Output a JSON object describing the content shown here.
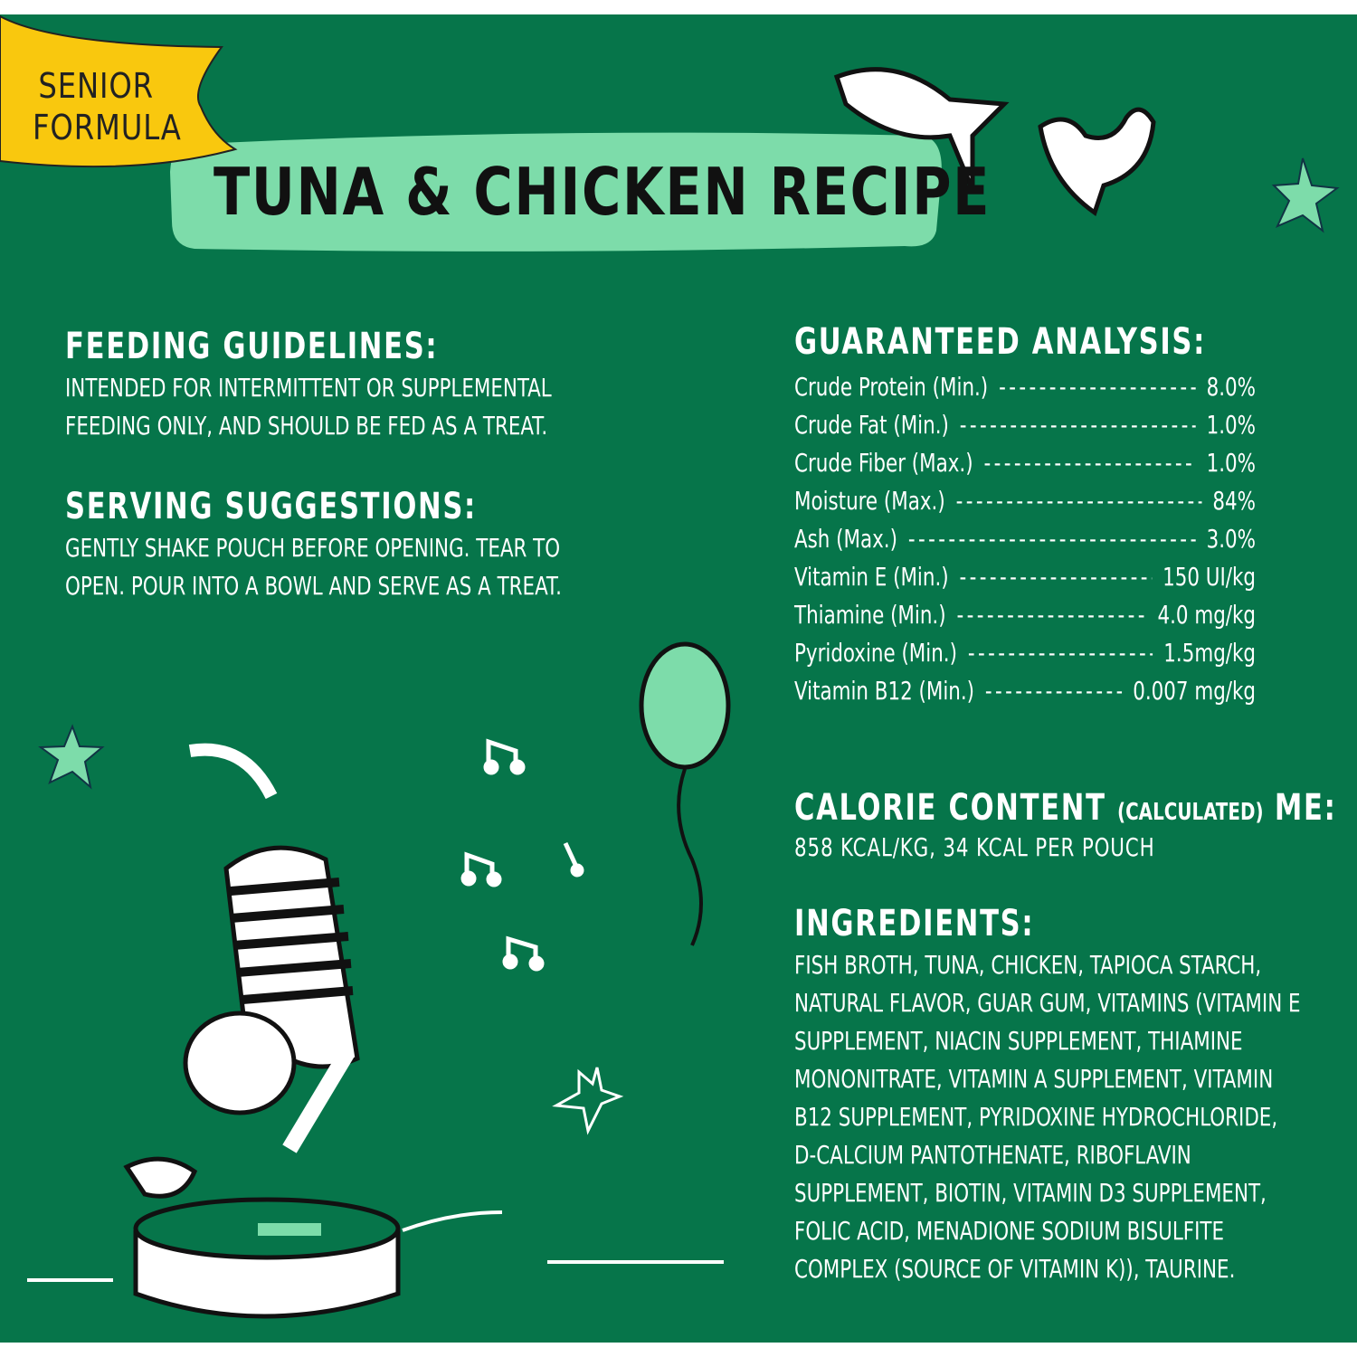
{
  "badge": "SENIOR\nFORMULA",
  "badge_lines": [
    "SENIOR",
    "FORMULA"
  ],
  "title": "TUNA & CHICKEN RECIPE",
  "feeding": {
    "heading": "FEEDING GUIDELINES:",
    "lines": [
      "INTENDED FOR INTERMITTENT OR SUPPLEMENTAL",
      "FEEDING ONLY, AND SHOULD BE FED AS A TREAT."
    ]
  },
  "serving": {
    "heading": "SERVING SUGGESTIONS:",
    "lines": [
      "GENTLY SHAKE POUCH BEFORE OPENING. TEAR TO",
      "OPEN. POUR INTO A BOWL AND SERVE AS A TREAT."
    ]
  },
  "analysis": {
    "heading": "GUARANTEED ANALYSIS:",
    "rows": [
      {
        "name": "Crude Protein (Min.)",
        "value": "8.0%"
      },
      {
        "name": "Crude Fat (Min.)",
        "value": "1.0%"
      },
      {
        "name": "Crude Fiber (Max.)",
        "value": "1.0%"
      },
      {
        "name": "Moisture (Max.)",
        "value": "84%"
      },
      {
        "name": "Ash (Max.)",
        "value": "3.0%"
      },
      {
        "name": "Vitamin E (Min.)",
        "value": "150 UI/kg"
      },
      {
        "name": "Thiamine (Min.)",
        "value": "4.0 mg/kg"
      },
      {
        "name": "Pyridoxine (Min.)",
        "value": "1.5mg/kg"
      },
      {
        "name": "Vitamin B12 (Min.)",
        "value": "0.007 mg/kg"
      }
    ]
  },
  "calorie": {
    "heading": "CALORIE CONTENT",
    "heading_small": "(CALCULATED)",
    "heading_end": "ME:",
    "text": "858 KCAL/KG, 34 KCAL PER POUCH"
  },
  "ingredients": {
    "heading": "INGREDIENTS:",
    "lines": [
      "FISH BROTH, TUNA, CHICKEN, TAPIOCA STARCH,",
      "NATURAL FLAVOR, GUAR GUM, VITAMINS (VITAMIN E",
      "SUPPLEMENT, NIACIN SUPPLEMENT, THIAMINE",
      "MONONITRATE, VITAMIN A SUPPLEMENT, VITAMIN",
      "B12 SUPPLEMENT, PYRIDOXINE HYDROCHLORIDE,",
      "D-CALCIUM PANTOTHENATE, RIBOFLAVIN",
      "SUPPLEMENT, BIOTIN, VITAMIN D3 SUPPLEMENT,",
      "FOLIC ACID, MENADIONE SODIUM BISULFITE",
      "COMPLEX (SOURCE OF VITAMIN K)), TAURINE."
    ]
  },
  "colors": {
    "background": "#06754a",
    "mint": "#7ddcaa",
    "yellow": "#f9c80e",
    "text": "#ffffff"
  }
}
